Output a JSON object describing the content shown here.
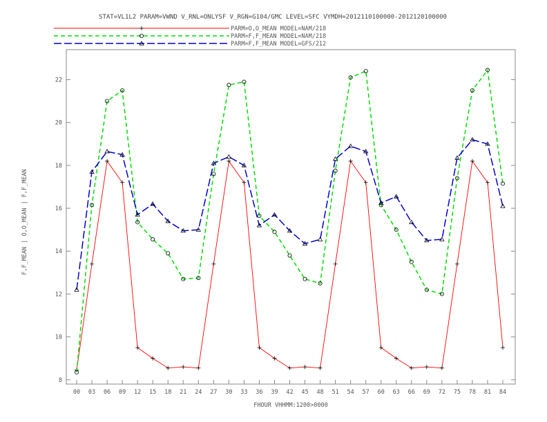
{
  "chart_data": {
    "type": "line",
    "title": "STAT=VL1L2 PARAM=VWND V_RNL=ONLYSF V_RGN=G104/GMC LEVEL=SFC VYMDH=2012110100000-2012120100000",
    "xlabel": "FHOUR VHHMM:1200>0000",
    "ylabel": "F,F_MEAN | O,O_MEAN | F,F_MEAN",
    "categories": [
      "00",
      "03",
      "06",
      "09",
      "12",
      "15",
      "18",
      "21",
      "24",
      "27",
      "30",
      "33",
      "36",
      "39",
      "42",
      "45",
      "48",
      "51",
      "54",
      "57",
      "60",
      "63",
      "66",
      "69",
      "72",
      "75",
      "78",
      "81",
      "84"
    ],
    "ylim": [
      7.8,
      23.4
    ],
    "yticks": [
      8,
      10,
      12,
      14,
      16,
      18,
      20,
      22
    ],
    "grid": false,
    "legend_position": "top-left",
    "series": [
      {
        "name": "PARM=O,O_MEAN MODEL=NAM/218",
        "color": "#ff0000",
        "dash": "solid",
        "marker": "plus",
        "values": [
          8.45,
          13.4,
          18.2,
          17.2,
          9.5,
          9.0,
          8.55,
          8.6,
          8.55,
          13.4,
          18.2,
          17.2,
          9.5,
          9.0,
          8.55,
          8.6,
          8.55,
          13.4,
          18.2,
          17.2,
          9.5,
          9.0,
          8.55,
          8.6,
          8.55,
          13.4,
          18.2,
          17.2,
          9.5
        ]
      },
      {
        "name": "PARM=F,F_MEAN MODEL=NAM/218",
        "color": "#00dd00",
        "dash": "dashed",
        "marker": "circle",
        "values": [
          8.35,
          16.15,
          21.0,
          21.5,
          15.35,
          14.55,
          13.9,
          12.7,
          12.75,
          17.6,
          21.75,
          21.9,
          15.65,
          14.9,
          13.8,
          12.7,
          12.5,
          17.75,
          22.1,
          22.4,
          16.15,
          15.0,
          13.5,
          12.2,
          12.0,
          17.4,
          21.5,
          22.45,
          17.15
        ]
      },
      {
        "name": "PARM=F,F_MEAN MODEL=GFS/212",
        "color": "#0000cc",
        "dash": "longdash",
        "marker": "triangle",
        "values": [
          12.2,
          17.7,
          18.65,
          18.5,
          15.7,
          16.2,
          15.4,
          14.95,
          15.0,
          18.1,
          18.4,
          18.0,
          15.2,
          15.7,
          14.95,
          14.35,
          14.55,
          18.3,
          18.9,
          18.65,
          16.25,
          16.55,
          15.35,
          14.5,
          14.55,
          18.35,
          19.2,
          19.0,
          16.1
        ]
      }
    ]
  }
}
